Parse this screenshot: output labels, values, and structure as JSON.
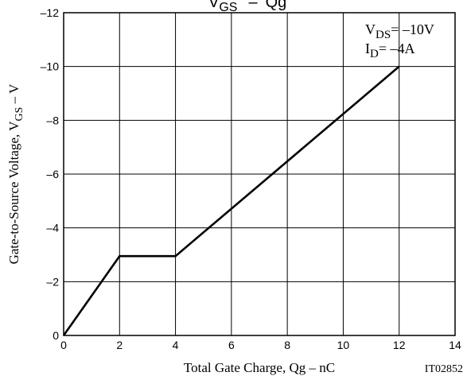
{
  "chart_data": {
    "type": "line",
    "title": {
      "text": "V",
      "sub": "GS",
      "connector": "–",
      "right": "Qg"
    },
    "xlabel": "Total Gate Charge, Qg  –  nC",
    "ylabel": {
      "prefix": "Gate-to-Source Voltage, V",
      "sub": "GS",
      "suffix": "  –  V"
    },
    "xlim": [
      0,
      14
    ],
    "ylim": [
      0,
      -12
    ],
    "x_ticks": [
      "0",
      "2",
      "4",
      "6",
      "8",
      "10",
      "12",
      "14"
    ],
    "y_ticks": [
      "0",
      "–2",
      "–4",
      "–6",
      "–8",
      "–10",
      "–12"
    ],
    "grid": true,
    "series": [
      {
        "x": [
          0,
          2,
          4,
          12
        ],
        "y": [
          0,
          -2.95,
          -2.95,
          -10.0
        ],
        "color": "#000000"
      }
    ],
    "annotations": {
      "vds": {
        "prefix": "V",
        "sub": "DS",
        "value": "= –10V"
      },
      "id": {
        "prefix": "I",
        "sub": "D",
        "value": "= –4A"
      }
    },
    "figure_code": "IT02852"
  }
}
